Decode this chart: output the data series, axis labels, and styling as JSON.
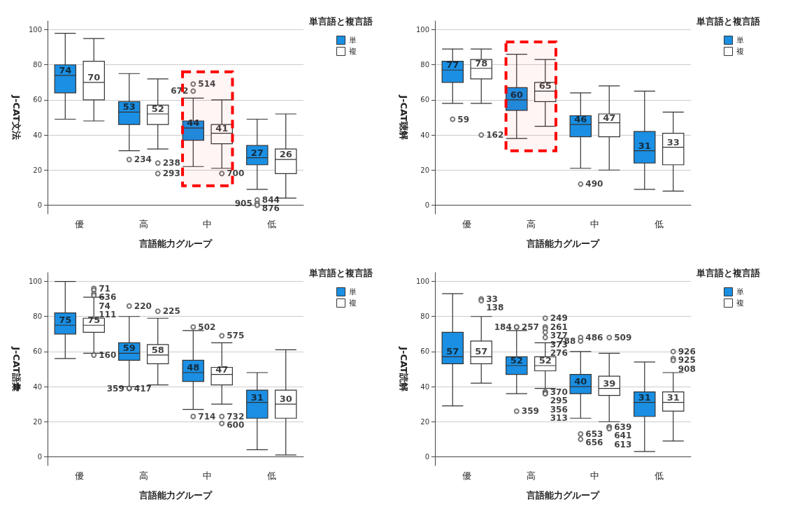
{
  "chart_data": [
    {
      "type": "box",
      "xlabel": "言語能力グループ",
      "ylabel": "J-CAT文法",
      "legend_title": "単言語と複言語",
      "legend": "top right",
      "grid": "y",
      "ylim": [
        -5,
        105
      ],
      "yticks": [
        0,
        20,
        40,
        60,
        80,
        100
      ],
      "categories": [
        "優",
        "高",
        "中",
        "低"
      ],
      "bands": [
        {
          "axis": "x",
          "from": "中",
          "to": "中",
          "color": "#ff0000"
        }
      ],
      "series": [
        {
          "name": "単",
          "color": "#1a8fe3",
          "boxes": [
            {
              "low": 49,
              "q1": 64,
              "median": 74,
              "q3": 80,
              "high": 98
            },
            {
              "low": 31,
              "q1": 46,
              "median": 53,
              "q3": 59,
              "high": 75,
              "outliers": [
                26
              ]
            },
            {
              "low": 22,
              "q1": 37,
              "median": 44,
              "q3": 48,
              "high": 61,
              "outliers": [
                69,
                65
              ]
            },
            {
              "low": 9,
              "q1": 23,
              "median": 27,
              "q3": 34,
              "high": 49,
              "outliers": [
                3,
                1,
                0
              ]
            }
          ]
        },
        {
          "name": "複",
          "color": "#ffffff",
          "boxes": [
            {
              "low": 48,
              "q1": 60,
              "median": 70,
              "q3": 82,
              "high": 95
            },
            {
              "low": 32,
              "q1": 46,
              "median": 52,
              "q3": 57,
              "high": 72,
              "outliers": [
                24,
                18
              ]
            },
            {
              "low": 21,
              "q1": 35,
              "median": 41,
              "q3": 46,
              "high": 60,
              "outliers": [
                18
              ]
            },
            {
              "low": 4,
              "q1": 18,
              "median": 26,
              "q3": 32,
              "high": 52
            }
          ]
        }
      ],
      "annotations": [
        "74",
        "53",
        "234",
        "44",
        "514",
        "672",
        "27",
        "844",
        "905",
        "876",
        "70",
        "52",
        "238",
        "293",
        "41",
        "700",
        "26"
      ]
    },
    {
      "type": "box",
      "xlabel": "言語能力グループ",
      "ylabel": "J-CAT聴解",
      "legend_title": "単言語と複言語",
      "legend": "top right",
      "grid": "y",
      "ylim": [
        -5,
        105
      ],
      "yticks": [
        0,
        20,
        40,
        60,
        80,
        100
      ],
      "categories": [
        "優",
        "高",
        "中",
        "低"
      ],
      "bands": [
        {
          "axis": "x",
          "from": "高",
          "to": "高",
          "color": "#ff0000"
        }
      ],
      "series": [
        {
          "name": "単",
          "color": "#1a8fe3",
          "boxes": [
            {
              "low": 58,
              "q1": 70,
              "median": 77,
              "q3": 82,
              "high": 89,
              "outliers": [
                49
              ]
            },
            {
              "low": 38,
              "q1": 54,
              "median": 60,
              "q3": 67,
              "high": 86
            },
            {
              "low": 21,
              "q1": 39,
              "median": 46,
              "q3": 51,
              "high": 64,
              "outliers": [
                12
              ]
            },
            {
              "low": 9,
              "q1": 24,
              "median": 31,
              "q3": 42,
              "high": 65
            }
          ]
        },
        {
          "name": "複",
          "color": "#ffffff",
          "boxes": [
            {
              "low": 58,
              "q1": 72,
              "median": 78,
              "q3": 83,
              "high": 89,
              "outliers": [
                40
              ]
            },
            {
              "low": 45,
              "q1": 59,
              "median": 65,
              "q3": 70,
              "high": 83
            },
            {
              "low": 20,
              "q1": 39,
              "median": 47,
              "q3": 52,
              "high": 68
            },
            {
              "low": 8,
              "q1": 23,
              "median": 33,
              "q3": 41,
              "high": 53
            }
          ]
        }
      ],
      "annotations": [
        "77",
        "59",
        "60",
        "46",
        "490",
        "31",
        "78",
        "162",
        "65",
        "47",
        "33"
      ]
    },
    {
      "type": "box",
      "xlabel": "言語能力グループ",
      "ylabel": "J-CAT語彙",
      "legend_title": "単言語と複言語",
      "legend": "top right",
      "grid": "y",
      "ylim": [
        -5,
        105
      ],
      "yticks": [
        0,
        20,
        40,
        60,
        80,
        100
      ],
      "categories": [
        "優",
        "高",
        "中",
        "低"
      ],
      "series": [
        {
          "name": "単",
          "color": "#1a8fe3",
          "boxes": [
            {
              "low": 56,
              "q1": 70,
              "median": 75,
              "q3": 82,
              "high": 100
            },
            {
              "low": 40,
              "q1": 55,
              "median": 59,
              "q3": 65,
              "high": 80,
              "outliers": [
                86,
                39,
                39
              ]
            },
            {
              "low": 27,
              "q1": 43,
              "median": 48,
              "q3": 55,
              "high": 72,
              "outliers": [
                74,
                23
              ]
            },
            {
              "low": 4,
              "q1": 22,
              "median": 31,
              "q3": 38,
              "high": 48
            }
          ]
        },
        {
          "name": "複",
          "color": "#ffffff",
          "boxes": [
            {
              "low": 59,
              "q1": 71,
              "median": 75,
              "q3": 79,
              "high": 91,
              "outliers": [
                96,
                95,
                93,
                92,
                58
              ]
            },
            {
              "low": 41,
              "q1": 53,
              "median": 58,
              "q3": 64,
              "high": 79,
              "outliers": [
                83
              ]
            },
            {
              "low": 30,
              "q1": 41,
              "median": 47,
              "q3": 51,
              "high": 65,
              "outliers": [
                69,
                23,
                19
              ]
            },
            {
              "low": 1,
              "q1": 22,
              "median": 30,
              "q3": 38,
              "high": 61
            }
          ]
        }
      ],
      "annotations": [
        "75",
        "59",
        "220",
        "417",
        "359",
        "48",
        "502",
        "714",
        "31",
        "75",
        "71",
        "636",
        "74",
        "111",
        "160",
        "58",
        "225",
        "47",
        "575",
        "732",
        "600",
        "30"
      ]
    },
    {
      "type": "box",
      "xlabel": "言語能力グループ",
      "ylabel": "J-CAT読解",
      "legend_title": "単言語と複言語",
      "legend": "top right",
      "grid": "y",
      "ylim": [
        -5,
        105
      ],
      "yticks": [
        0,
        20,
        40,
        60,
        80,
        100
      ],
      "categories": [
        "優",
        "高",
        "中",
        "低"
      ],
      "series": [
        {
          "name": "単",
          "color": "#1a8fe3",
          "boxes": [
            {
              "low": 29,
              "q1": 53,
              "median": 57,
              "q3": 71,
              "high": 93
            },
            {
              "low": 36,
              "q1": 47,
              "median": 52,
              "q3": 57,
              "high": 72,
              "outliers": [
                74,
                74,
                26
              ]
            },
            {
              "low": 22,
              "q1": 36,
              "median": 40,
              "q3": 47,
              "high": 60,
              "outliers": [
                68,
                66,
                13,
                10
              ]
            },
            {
              "low": 3,
              "q1": 23,
              "median": 31,
              "q3": 37,
              "high": 54
            }
          ]
        },
        {
          "name": "複",
          "color": "#ffffff",
          "boxes": [
            {
              "low": 42,
              "q1": 53,
              "median": 57,
              "q3": 66,
              "high": 80,
              "outliers": [
                90,
                89
              ]
            },
            {
              "low": 39,
              "q1": 49,
              "median": 52,
              "q3": 57,
              "high": 65,
              "outliers": [
                79,
                74,
                73,
                71,
                68,
                37,
                37,
                36,
                36
              ]
            },
            {
              "low": 20,
              "q1": 35,
              "median": 39,
              "q3": 46,
              "high": 59,
              "outliers": [
                68,
                17,
                17,
                16
              ]
            },
            {
              "low": 9,
              "q1": 26,
              "median": 31,
              "q3": 37,
              "high": 48,
              "outliers": [
                60,
                56,
                55
              ]
            }
          ]
        }
      ],
      "annotations": [
        "57",
        "52",
        "257",
        "184",
        "359",
        "40",
        "486",
        "788",
        "653",
        "656",
        "31",
        "57",
        "33",
        "138",
        "52",
        "249",
        "261",
        "377",
        "373",
        "276",
        "370",
        "295",
        "356",
        "313",
        "39",
        "509",
        "639",
        "641",
        "613",
        "31",
        "926",
        "925",
        "908"
      ]
    }
  ]
}
